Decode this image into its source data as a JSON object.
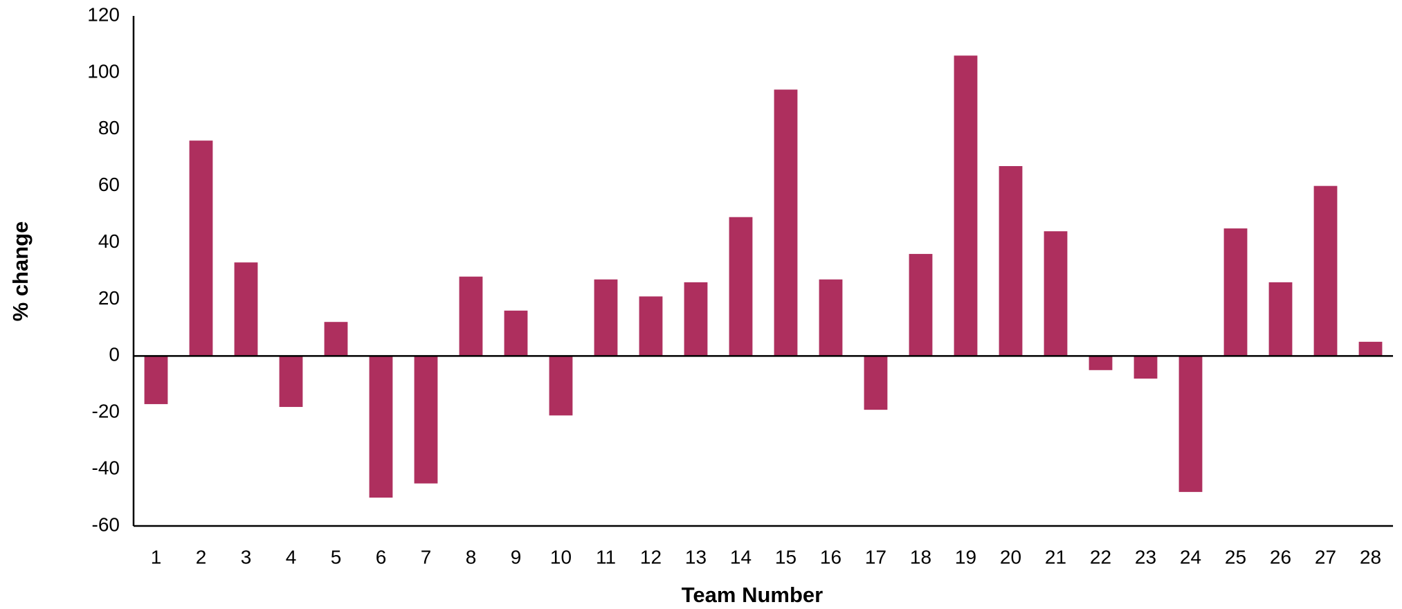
{
  "chart_data": {
    "type": "bar",
    "categories": [
      "1",
      "2",
      "3",
      "4",
      "5",
      "6",
      "7",
      "8",
      "9",
      "10",
      "11",
      "12",
      "13",
      "14",
      "15",
      "16",
      "17",
      "18",
      "19",
      "20",
      "21",
      "22",
      "23",
      "24",
      "25",
      "26",
      "27",
      "28"
    ],
    "values": [
      -17,
      76,
      33,
      -18,
      12,
      -50,
      -45,
      28,
      16,
      -21,
      27,
      21,
      26,
      49,
      94,
      27,
      -19,
      36,
      106,
      67,
      44,
      -5,
      -8,
      -48,
      45,
      26,
      60,
      5
    ],
    "color": "#ae2f5e",
    "xlabel": "Team Number",
    "ylabel": "% change",
    "ylim": [
      -60,
      120
    ],
    "yticks": [
      -60,
      -40,
      -20,
      0,
      20,
      40,
      60,
      80,
      100,
      120
    ],
    "grid": false
  }
}
